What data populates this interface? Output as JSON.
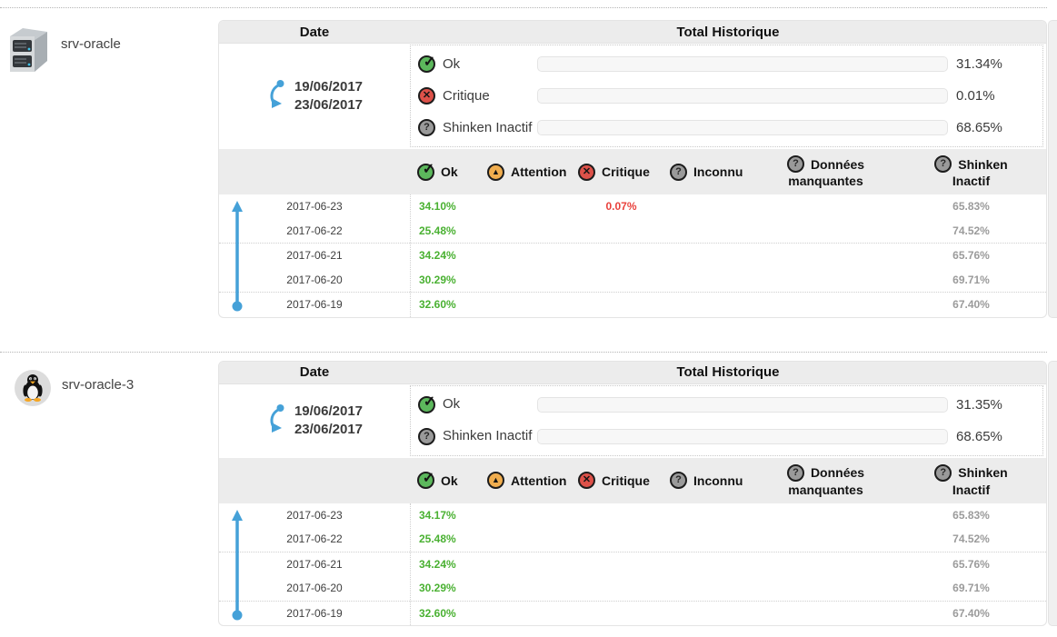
{
  "table_headers": {
    "date": "Date",
    "history": "Total Historique"
  },
  "icons": {
    "ok": "✓",
    "warning": "▲",
    "critical": "✕",
    "unknown": "?"
  },
  "colors": {
    "ok_bar": "#54c325",
    "critical_bar": "#dd5149",
    "inactive_bar": "#8a8a8a",
    "ok_text": "#4ab132",
    "critical_text": "#e9423d",
    "inactive_text": "#9b9b9b",
    "accent_blue": "#45a1d8",
    "header_bg": "#ececec",
    "icon_ok": "#5cb85c",
    "icon_warning": "#f0ad4e",
    "icon_critical": "#dd5149",
    "icon_unknown": "#9a9a9a"
  },
  "columns": [
    {
      "label": "Ok",
      "status": "ok"
    },
    {
      "label": "Attention",
      "status": "warning"
    },
    {
      "label": "Critique",
      "status": "critical"
    },
    {
      "label": "Inconnu",
      "status": "unknown"
    },
    {
      "label": "Données",
      "label2": "manquantes",
      "status": "unknown"
    },
    {
      "label": "Shinken",
      "label2": "Inactif",
      "status": "unknown"
    }
  ],
  "hosts": [
    {
      "name": "srv-oracle",
      "icon": "server-icon",
      "period": {
        "from": "19/06/2017",
        "to": "23/06/2017"
      },
      "summary": [
        {
          "label": "Ok",
          "status": "ok",
          "value": 31.34,
          "percent": "31.34%"
        },
        {
          "label": "Critique",
          "status": "critical",
          "value": 0.01,
          "percent": "0.01%"
        },
        {
          "label": "Shinken Inactif",
          "status": "unknown",
          "value": 68.65,
          "percent": "68.65%"
        }
      ],
      "rows": [
        {
          "date": "2017-06-23",
          "ok": "34.10%",
          "critique": "0.07%",
          "shinken": "65.83%"
        },
        {
          "date": "2017-06-22",
          "ok": "25.48%",
          "critique": "",
          "shinken": "74.52%"
        },
        {
          "date": "2017-06-21",
          "ok": "34.24%",
          "critique": "",
          "shinken": "65.76%"
        },
        {
          "date": "2017-06-20",
          "ok": "30.29%",
          "critique": "",
          "shinken": "69.71%"
        },
        {
          "date": "2017-06-19",
          "ok": "32.60%",
          "critique": "",
          "shinken": "67.40%"
        }
      ]
    },
    {
      "name": "srv-oracle-3",
      "icon": "linux-tux-icon",
      "period": {
        "from": "19/06/2017",
        "to": "23/06/2017"
      },
      "summary": [
        {
          "label": "Ok",
          "status": "ok",
          "value": 31.35,
          "percent": "31.35%"
        },
        {
          "label": "Shinken Inactif",
          "status": "unknown",
          "value": 68.65,
          "percent": "68.65%"
        }
      ],
      "rows": [
        {
          "date": "2017-06-23",
          "ok": "34.17%",
          "critique": "",
          "shinken": "65.83%"
        },
        {
          "date": "2017-06-22",
          "ok": "25.48%",
          "critique": "",
          "shinken": "74.52%"
        },
        {
          "date": "2017-06-21",
          "ok": "34.24%",
          "critique": "",
          "shinken": "65.76%"
        },
        {
          "date": "2017-06-20",
          "ok": "30.29%",
          "critique": "",
          "shinken": "69.71%"
        },
        {
          "date": "2017-06-19",
          "ok": "32.60%",
          "critique": "",
          "shinken": "67.40%"
        }
      ]
    }
  ]
}
